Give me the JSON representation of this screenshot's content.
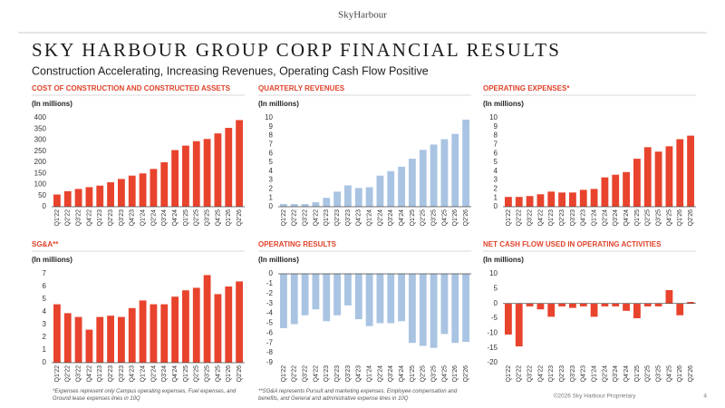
{
  "header": {
    "logo": "SkyHarbour",
    "title": "SKY HARBOUR GROUP CORP FINANCIAL RESULTS",
    "subtitle": "Construction Accelerating, Increasing Revenues, Operating Cash Flow Positive"
  },
  "footer": {
    "note_1": "*Expenses represent only Campus operating expenses, Fuel expenses, and Ground lease expenses lines in 10Q",
    "note_2": "**SG&A represents Pursuit and marketing expenses, Employee compensation and benefits, and General and administrative expense lines in 10Q",
    "copyright": "©2026 Sky Harbour Proprietary",
    "page": "4"
  },
  "chart_data": [
    {
      "type": "bar",
      "title": "COST OF CONSTRUCTION AND CONSTRUCTED ASSETS",
      "y_label": "(In millions)",
      "color": "#e8432d",
      "categories": [
        "Q1'22",
        "Q2'22",
        "Q3'22",
        "Q4'22",
        "Q1'23",
        "Q2'23",
        "Q3'23",
        "Q4'23",
        "Q1'24",
        "Q2'24",
        "Q3'24",
        "Q4'24",
        "Q1'25",
        "Q2'25",
        "Q3'25",
        "Q4'25",
        "Q1'26",
        "Q2'26"
      ],
      "values": [
        55,
        70,
        80,
        88,
        95,
        110,
        125,
        140,
        150,
        170,
        200,
        255,
        275,
        295,
        305,
        330,
        355,
        390
      ],
      "ylim": [
        0,
        400
      ],
      "yticks": [
        0,
        50,
        100,
        150,
        200,
        250,
        300,
        350,
        400
      ]
    },
    {
      "type": "bar",
      "title": "QUARTERLY REVENUES",
      "y_label": "(In millions)",
      "color": "#a9c4e2",
      "categories": [
        "Q1'22",
        "Q2'22",
        "Q3'22",
        "Q4'22",
        "Q1'23",
        "Q2'23",
        "Q3'23",
        "Q4'23",
        "Q1'24",
        "Q2'24",
        "Q3'24",
        "Q4'24",
        "Q1'25",
        "Q2'25",
        "Q3'25",
        "Q4'25",
        "Q1'26",
        "Q2'26"
      ],
      "values": [
        0.3,
        0.3,
        0.3,
        0.5,
        1.0,
        1.7,
        2.4,
        2.1,
        2.2,
        3.5,
        4.0,
        4.5,
        5.4,
        6.4,
        7.0,
        7.6,
        8.2,
        9.8
      ],
      "ylim": [
        0,
        10
      ],
      "yticks": [
        0,
        1,
        2,
        3,
        4,
        5,
        6,
        7,
        8,
        9,
        10
      ]
    },
    {
      "type": "bar",
      "title": "OPERATING EXPENSES*",
      "y_label": "(In millions)",
      "color": "#e8432d",
      "categories": [
        "Q1'22",
        "Q2'22",
        "Q3'22",
        "Q4'22",
        "Q1'23",
        "Q2'23",
        "Q3'23",
        "Q4'23",
        "Q1'24",
        "Q2'24",
        "Q3'24",
        "Q4'24",
        "Q1'25",
        "Q2'25",
        "Q3'25",
        "Q4'25",
        "Q1'26",
        "Q2'26"
      ],
      "values": [
        1.1,
        1.1,
        1.2,
        1.4,
        1.7,
        1.6,
        1.6,
        1.9,
        2.0,
        3.3,
        3.6,
        3.9,
        5.4,
        6.7,
        6.2,
        6.8,
        7.6,
        8.0
      ],
      "ylim": [
        0,
        10
      ],
      "yticks": [
        0,
        1,
        2,
        3,
        4,
        5,
        6,
        7,
        8,
        9,
        10
      ]
    },
    {
      "type": "bar",
      "title": "SG&A**",
      "y_label": "(In millions)",
      "color": "#e8432d",
      "categories": [
        "Q1'22",
        "Q2'22",
        "Q3'22",
        "Q4'22",
        "Q1'23",
        "Q2'23",
        "Q3'23",
        "Q4'23",
        "Q1'24",
        "Q2'24",
        "Q3'24",
        "Q4'24",
        "Q1'25",
        "Q2'25",
        "Q3'25",
        "Q4'25",
        "Q1'26",
        "Q2'26"
      ],
      "values": [
        4.6,
        3.9,
        3.6,
        2.6,
        3.6,
        3.7,
        3.6,
        4.3,
        4.9,
        4.6,
        4.6,
        5.2,
        5.7,
        5.9,
        6.9,
        5.4,
        6.0,
        6.4
      ],
      "ylim": [
        0,
        7
      ],
      "yticks": [
        0,
        1,
        2,
        3,
        4,
        5,
        6,
        7
      ]
    },
    {
      "type": "bar",
      "title": "OPERATING RESULTS",
      "y_label": "(In millions)",
      "color": "#a9c4e2",
      "categories": [
        "Q1'22",
        "Q2'22",
        "Q3'22",
        "Q4'22",
        "Q1'23",
        "Q2'23",
        "Q3'23",
        "Q4'23",
        "Q1'24",
        "Q2'24",
        "Q3'24",
        "Q4'24",
        "Q1'25",
        "Q2'25",
        "Q3'25",
        "Q4'25",
        "Q1'26",
        "Q2'26"
      ],
      "values": [
        -5.5,
        -5.1,
        -4.2,
        -3.6,
        -4.8,
        -4.2,
        -3.2,
        -4.6,
        -5.3,
        -5.0,
        -5.0,
        -4.8,
        -7.0,
        -7.3,
        -7.5,
        -6.1,
        -7.0,
        -6.9
      ],
      "ylim": [
        -9,
        0
      ],
      "yticks": [
        0,
        -1,
        -2,
        -3,
        -4,
        -5,
        -6,
        -7,
        -8,
        -9
      ]
    },
    {
      "type": "bar",
      "title": "NET CASH FLOW USED IN OPERATING ACTIVITIES",
      "y_label": "(In millions)",
      "color": "#e8432d",
      "categories": [
        "Q1'22",
        "Q2'22",
        "Q3'22",
        "Q4'22",
        "Q1'23",
        "Q2'23",
        "Q3'23",
        "Q4'23",
        "Q1'24",
        "Q2'24",
        "Q3'24",
        "Q4'24",
        "Q1'25",
        "Q2'25",
        "Q3'25",
        "Q4'25",
        "Q1'26",
        "Q2'26"
      ],
      "values": [
        -10.5,
        -14.5,
        -1,
        -2,
        -4.5,
        -1,
        -1.5,
        -1,
        -4.5,
        -1,
        -1,
        -2.5,
        -5,
        -1,
        -1,
        4.5,
        -4,
        0.5
      ],
      "ylim": [
        -20,
        10
      ],
      "yticks": [
        10,
        5,
        0,
        -5,
        -10,
        -15,
        -20
      ]
    }
  ]
}
